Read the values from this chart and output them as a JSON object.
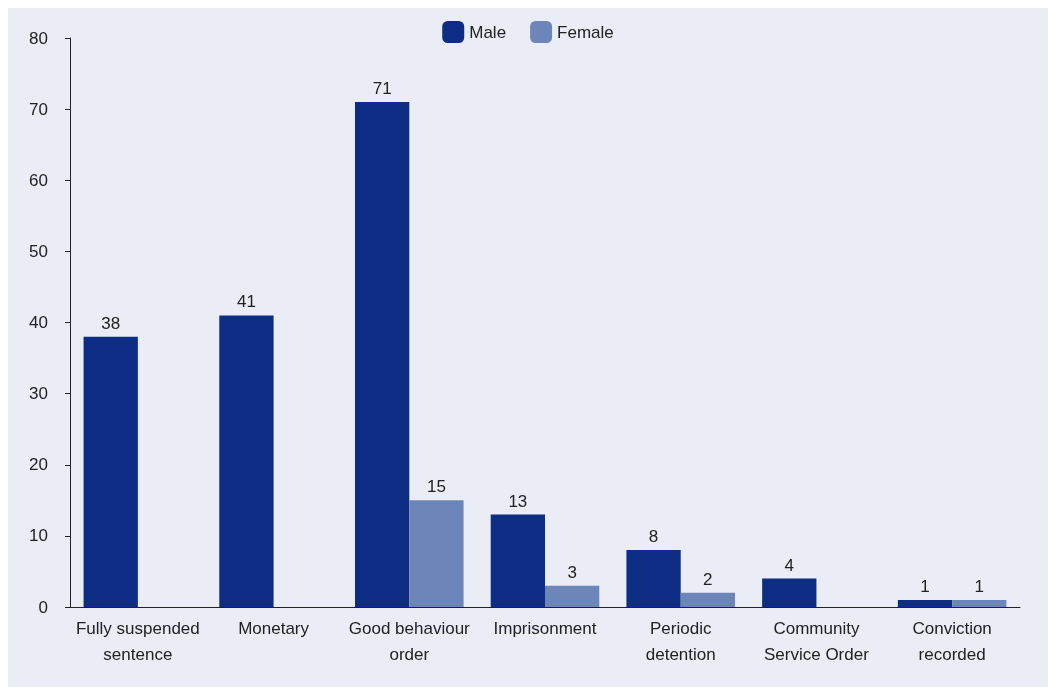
{
  "chart_data": {
    "type": "bar",
    "categories": [
      "Fully suspended\nsentence",
      "Monetary",
      "Good behaviour\norder",
      "Imprisonment",
      "Periodic\ndetention",
      "Community\nService Order",
      "Conviction\nrecorded"
    ],
    "series": [
      {
        "name": "Male",
        "color": "#0c2d83",
        "values": [
          38,
          41,
          71,
          13,
          8,
          4,
          1
        ]
      },
      {
        "name": "Female",
        "color": "#6d86b9",
        "values": [
          null,
          null,
          15,
          3,
          2,
          null,
          1
        ]
      }
    ],
    "ylim": [
      0,
      80
    ],
    "yticks": [
      0,
      10,
      20,
      30,
      40,
      50,
      60,
      70,
      80
    ],
    "grid": false,
    "legend": "top",
    "data_labels": true
  }
}
